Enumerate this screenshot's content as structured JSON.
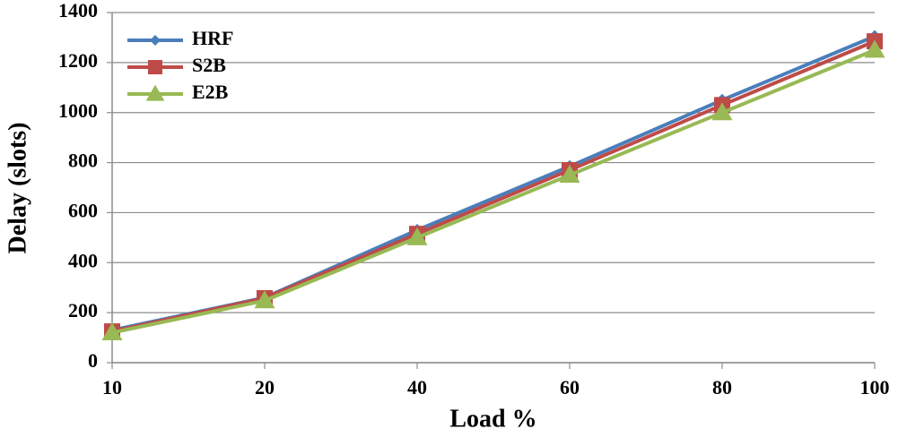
{
  "chart_data": {
    "type": "line",
    "x_label": "Load %",
    "y_label": "Delay (slots)",
    "categories": [
      "10",
      "20",
      "40",
      "60",
      "80",
      "100"
    ],
    "series": [
      {
        "name": "HRF",
        "color": "#4a7ebb",
        "marker": "diamond",
        "values": [
          130,
          260,
          530,
          785,
          1050,
          1305
        ]
      },
      {
        "name": "S2B",
        "color": "#be4b48",
        "marker": "square",
        "values": [
          125,
          258,
          515,
          770,
          1030,
          1285
        ]
      },
      {
        "name": "E2B",
        "color": "#98b954",
        "marker": "triangle",
        "values": [
          120,
          248,
          500,
          750,
          1000,
          1250
        ]
      }
    ],
    "ylim": [
      0,
      1400
    ],
    "yticks": [
      0,
      200,
      400,
      600,
      800,
      1000,
      1200,
      1400
    ],
    "grid": true,
    "legend": "top-left"
  }
}
